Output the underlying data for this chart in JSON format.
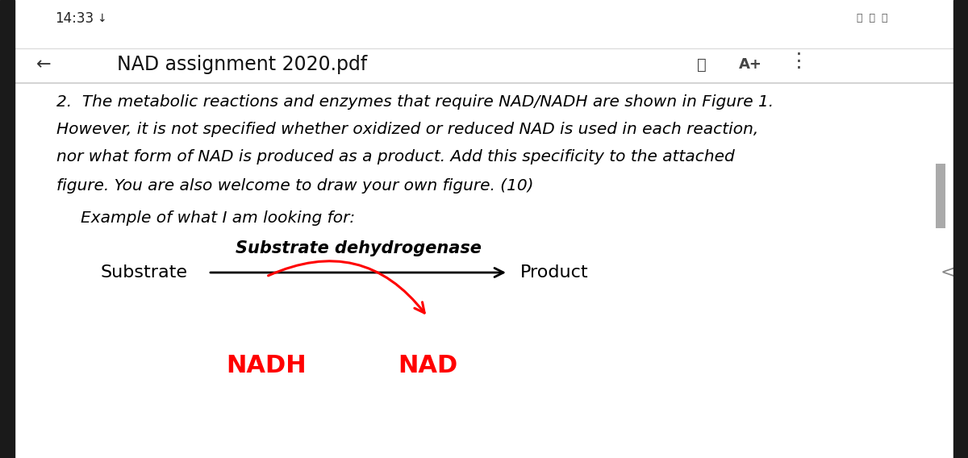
{
  "background_color": "#ffffff",
  "status_bar_time": "14:33  ↓",
  "nav_bar_title": "NAD assignment 2020.pdf",
  "body_text_lines": [
    "2.  The metabolic reactions and enzymes that require NAD/NADH are shown in Figure 1.",
    "However, it is not specified whether oxidized or reduced NAD is used in each reaction,",
    "nor what form of NAD is produced as a product. Add this specificity to the attached",
    "figure. You are also welcome to draw your own figure. (10)"
  ],
  "example_label": "Example of what I am looking for:",
  "substrate_label": "Substrate",
  "product_label": "Product",
  "enzyme_label": "Substrate dehydrogenase",
  "nadh_label": "NADH",
  "nad_label": "NAD",
  "arrow_color": "#ff0000",
  "text_color": "#000000",
  "red_label_color": "#ff0000",
  "fig_width": 12.0,
  "fig_height": 5.68
}
